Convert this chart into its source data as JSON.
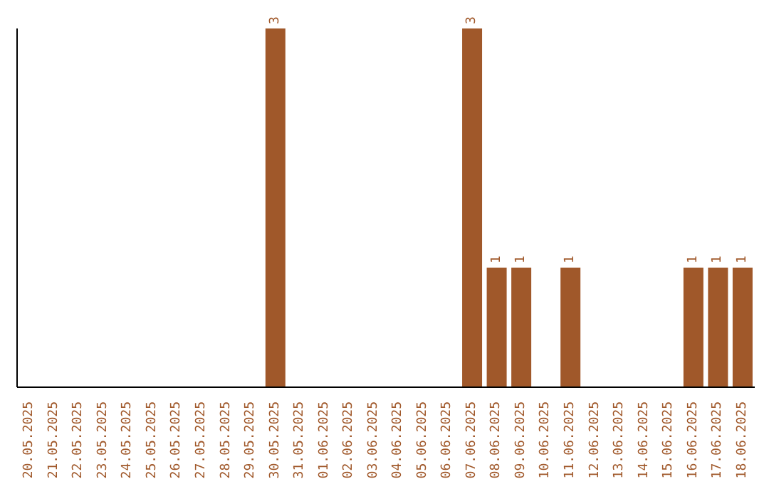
{
  "chart_data": {
    "type": "bar",
    "categories": [
      "20.05.2025",
      "21.05.2025",
      "22.05.2025",
      "23.05.2025",
      "24.05.2025",
      "25.05.2025",
      "26.05.2025",
      "27.05.2025",
      "28.05.2025",
      "29.05.2025",
      "30.05.2025",
      "31.05.2025",
      "01.06.2025",
      "02.06.2025",
      "03.06.2025",
      "04.06.2025",
      "05.06.2025",
      "06.06.2025",
      "07.06.2025",
      "08.06.2025",
      "09.06.2025",
      "10.06.2025",
      "11.06.2025",
      "12.06.2025",
      "13.06.2025",
      "14.06.2025",
      "15.06.2025",
      "16.06.2025",
      "17.06.2025",
      "18.06.2025"
    ],
    "values": [
      0,
      0,
      0,
      0,
      0,
      0,
      0,
      0,
      0,
      0,
      3,
      0,
      0,
      0,
      0,
      0,
      0,
      0,
      3,
      1,
      1,
      0,
      1,
      0,
      0,
      0,
      0,
      1,
      1,
      1
    ],
    "value_labels": [
      null,
      null,
      null,
      null,
      null,
      null,
      null,
      null,
      null,
      null,
      "3",
      null,
      null,
      null,
      null,
      null,
      null,
      null,
      "3",
      "1",
      "1",
      null,
      "1",
      null,
      null,
      null,
      null,
      "1",
      "1",
      "1"
    ],
    "color": "#a0582a",
    "tick_labels": "x"
  }
}
